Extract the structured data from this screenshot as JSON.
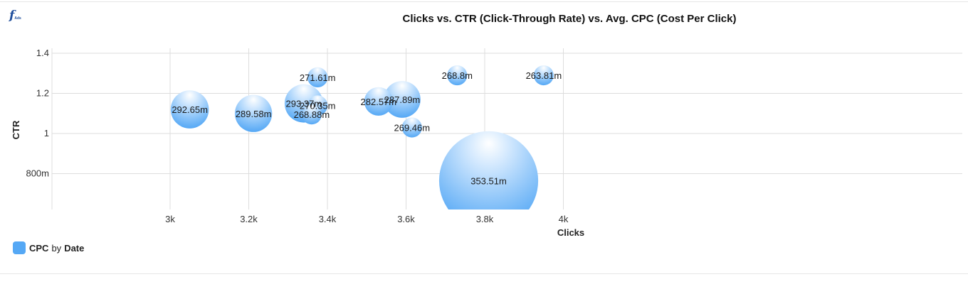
{
  "brand": {
    "logo_letter": "f",
    "logo_sub": "Ads"
  },
  "colors": {
    "bubble": "#55a8f5",
    "bubble_light": "#e3f2ff",
    "grid": "#dddddd"
  },
  "legend": {
    "measure": "CPC",
    "by": "by",
    "dimension": "Date"
  },
  "chart_data": {
    "type": "scatter",
    "title": "Clicks vs. CTR (Click-Through Rate) vs. Avg. CPC (Cost Per Click)",
    "xlabel": "Clicks",
    "ylabel": "CTR",
    "xlim": [
      2.85,
      4.0
    ],
    "ylim": [
      0.65,
      1.45
    ],
    "x_ticks": [
      {
        "value": 3.0,
        "label": "3k"
      },
      {
        "value": 3.2,
        "label": "3.2k"
      },
      {
        "value": 3.4,
        "label": "3.4k"
      },
      {
        "value": 3.6,
        "label": "3.6k"
      },
      {
        "value": 3.8,
        "label": "3.8k"
      },
      {
        "value": 4.0,
        "label": "4k"
      }
    ],
    "y_ticks": [
      {
        "value": 0.8,
        "label": "800m"
      },
      {
        "value": 1.0,
        "label": "1"
      },
      {
        "value": 1.2,
        "label": "1.2"
      },
      {
        "value": 1.4,
        "label": "1.4"
      }
    ],
    "grid": true,
    "legend_position": "bottom-left",
    "series": [
      {
        "name": "CPC by Date",
        "points": [
          {
            "x": 3.05,
            "y": 1.12,
            "size": 292.65,
            "label": "292.65m"
          },
          {
            "x": 3.212,
            "y": 1.1,
            "size": 289.58,
            "label": "289.58m"
          },
          {
            "x": 3.34,
            "y": 1.15,
            "size": 293.37,
            "label": "293.37m"
          },
          {
            "x": 3.375,
            "y": 1.28,
            "size": 271.61,
            "label": "271.61m"
          },
          {
            "x": 3.375,
            "y": 1.14,
            "size": 270.35,
            "label": "270.35m"
          },
          {
            "x": 3.36,
            "y": 1.095,
            "size": 268.88,
            "label": "268.88m"
          },
          {
            "x": 3.53,
            "y": 1.16,
            "size": 282.57,
            "label": "282.57m"
          },
          {
            "x": 3.59,
            "y": 1.17,
            "size": 287.89,
            "label": "287.89m"
          },
          {
            "x": 3.615,
            "y": 1.03,
            "size": 269.46,
            "label": "269.46m"
          },
          {
            "x": 3.73,
            "y": 1.29,
            "size": 268.8,
            "label": "268.8m"
          },
          {
            "x": 3.95,
            "y": 1.29,
            "size": 263.81,
            "label": "263.81m"
          },
          {
            "x": 3.81,
            "y": 0.765,
            "size": 353.51,
            "label": "353.51m"
          }
        ]
      }
    ]
  }
}
